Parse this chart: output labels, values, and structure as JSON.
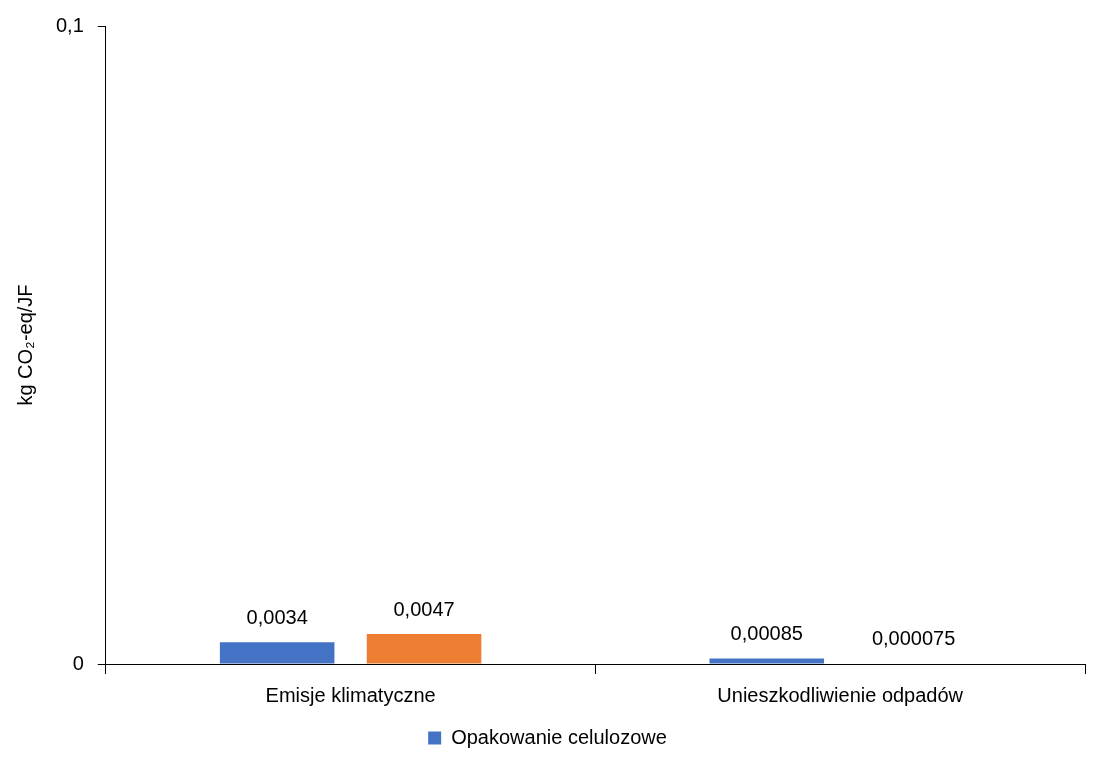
{
  "chart_data": {
    "type": "bar",
    "ylabel": "kg CO₂-eq/JF",
    "categories": [
      "Emisje klimatyczne",
      "Unieszkodliwienie odpadów"
    ],
    "series": [
      {
        "name": "Opakowanie celulozowe",
        "color": "#4472c4",
        "values": [
          0.0034,
          0.00085
        ],
        "value_labels": [
          "0,0034",
          "0,00085"
        ]
      },
      {
        "color": "#ed7d31",
        "values": [
          0.0047,
          7.5e-05
        ],
        "value_labels": [
          "0,0047",
          "0,000075"
        ]
      }
    ],
    "ylim": [
      0,
      0.1
    ],
    "yticks": [
      0,
      {
        "value": 0.1,
        "label": "0,1"
      }
    ],
    "grid": false,
    "legend": "bottom"
  }
}
